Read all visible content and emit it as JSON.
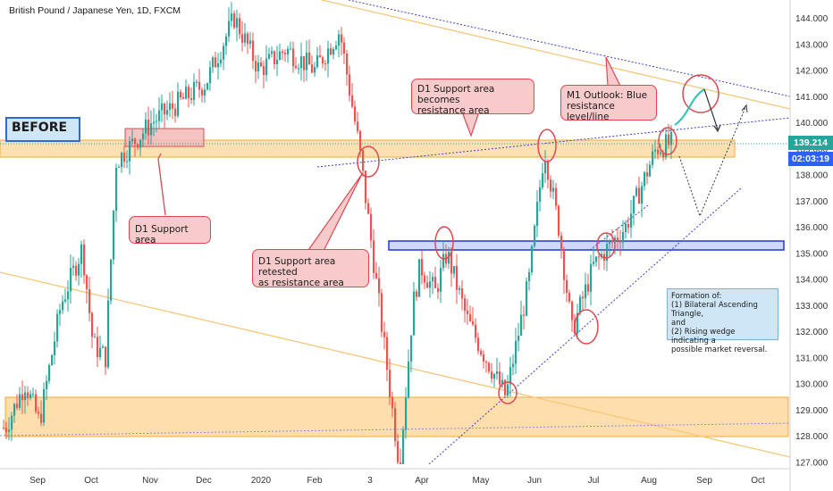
{
  "title": "British Pound / Japanese Yen, 1D, FXCM",
  "price_badge": "139.214",
  "timer_badge": "02:03:19",
  "colors": {
    "up": "#26a69a",
    "down": "#ef5350",
    "badge_price": "#26a69a",
    "badge_timer": "#2962ff",
    "zone_orange": "#ffd8a0",
    "zone_blue": "#2438c8",
    "trend_orange": "#f7c87a",
    "trend_blue": "#3c3cd8"
  },
  "annotations": {
    "before": "BEFORE",
    "d1_support": "D1 Support area",
    "d1_retested_1": "D1 Support area retested",
    "d1_retested_2": "as resistance area",
    "d1_becomes_1": "D1 Support area becomes",
    "d1_becomes_2": "resistance area",
    "m1_outlook_1": "M1 Outlook: Blue",
    "m1_outlook_2": "resistance level/line",
    "formation_1": "Formation of:",
    "formation_2": "(1) Bilateral Ascending Triangle,",
    "formation_3": "and",
    "formation_4": "(2) Rising wedge indicating a",
    "formation_5": "possible market reversal."
  },
  "chart_data": {
    "type": "candlestick",
    "title": "British Pound / Japanese Yen, 1D, FXCM",
    "x_tick_labels": [
      "Sep",
      "Oct",
      "Nov",
      "Dec",
      "2020",
      "Feb",
      "3",
      "Apr",
      "May",
      "Jun",
      "Jul",
      "Aug",
      "Sep",
      "Oct"
    ],
    "y_tick_labels": [
      "144.000",
      "143.000",
      "142.000",
      "141.000",
      "140.000",
      "139.000",
      "138.000",
      "137.000",
      "136.000",
      "135.000",
      "134.000",
      "133.000",
      "132.000",
      "131.000",
      "130.000",
      "129.000",
      "128.000",
      "127.000"
    ],
    "ylim": [
      126.7,
      144.4
    ],
    "last_price": 139.214,
    "grid": false,
    "close_path": [
      {
        "x": "Aug 2019",
        "y": 128.3
      },
      {
        "x": "late Aug 2019",
        "y": 130.0
      },
      {
        "x": "Sep 2019",
        "y": 128.5
      },
      {
        "x": "mid Sep 2019",
        "y": 133.0
      },
      {
        "x": "late Sep 2019",
        "y": 135.2
      },
      {
        "x": "early Oct 2019",
        "y": 131.5
      },
      {
        "x": "mid Oct 2019",
        "y": 131.0
      },
      {
        "x": "late Oct 2019",
        "y": 138.5
      },
      {
        "x": "Nov 2019",
        "y": 140.0
      },
      {
        "x": "Dec 2019",
        "y": 141.5
      },
      {
        "x": "mid Dec 2019",
        "y": 144.0
      },
      {
        "x": "2020",
        "y": 142.0
      },
      {
        "x": "mid Jan 2020",
        "y": 142.8
      },
      {
        "x": "Feb 2020",
        "y": 142.0
      },
      {
        "x": "late Feb 2020",
        "y": 143.5
      },
      {
        "x": "early Mar 2020",
        "y": 139.0
      },
      {
        "x": "mid Mar 2020",
        "y": 126.8
      },
      {
        "x": "late Mar 2020",
        "y": 133.0
      },
      {
        "x": "Apr 2020",
        "y": 134.5
      },
      {
        "x": "mid Apr 2020",
        "y": 133.5
      },
      {
        "x": "late Apr 2020",
        "y": 135.0
      },
      {
        "x": "May 2020",
        "y": 132.5
      },
      {
        "x": "mid May 2020",
        "y": 131.2
      },
      {
        "x": "late May 2020",
        "y": 129.5
      },
      {
        "x": "Jun 2020",
        "y": 134.0
      },
      {
        "x": "early Jun 2020",
        "y": 139.0
      },
      {
        "x": "mid Jun 2020",
        "y": 136.0
      },
      {
        "x": "late Jun 2020",
        "y": 132.0
      },
      {
        "x": "Jul 2020",
        "y": 134.5
      },
      {
        "x": "mid Jul 2020",
        "y": 135.2
      },
      {
        "x": "late Jul 2020",
        "y": 136.0
      },
      {
        "x": "Aug 2020",
        "y": 139.0
      },
      {
        "x": "mid Aug 2020",
        "y": 139.2
      }
    ]
  }
}
